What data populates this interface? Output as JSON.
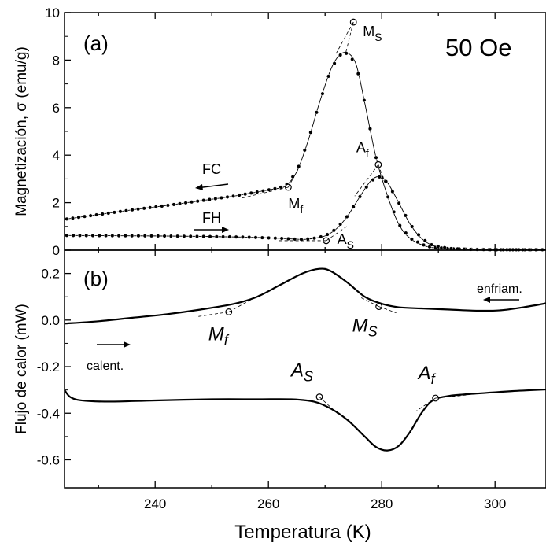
{
  "chart_data": [
    {
      "type": "line",
      "panel_label": "(a)",
      "annotation": "50 Oe",
      "ylabel": "Magnetización, σ (emu/g)",
      "xlim": [
        224,
        309
      ],
      "ylim": [
        0,
        10
      ],
      "yticks": [
        0,
        2,
        4,
        6,
        8,
        10
      ],
      "series": [
        {
          "name": "FC",
          "arrow": "left",
          "x": [
            224,
            230,
            236,
            242,
            248,
            254,
            258,
            261,
            263,
            265,
            267,
            269,
            271,
            272.5,
            274,
            275.5,
            277,
            279,
            281,
            283,
            285,
            288,
            292,
            300,
            309
          ],
          "y": [
            1.3,
            1.5,
            1.7,
            1.88,
            2.08,
            2.28,
            2.45,
            2.58,
            2.7,
            3.3,
            4.6,
            6.2,
            7.6,
            8.2,
            8.3,
            7.8,
            6.2,
            3.9,
            2.3,
            1.1,
            0.5,
            0.15,
            0.06,
            0.02,
            0.02
          ]
        },
        {
          "name": "FH",
          "arrow": "right",
          "x": [
            224,
            232,
            240,
            248,
            256,
            262,
            266,
            268,
            270,
            272,
            274,
            276,
            278,
            279.5,
            281,
            283,
            285,
            287,
            289,
            292,
            296,
            300,
            309
          ],
          "y": [
            0.62,
            0.61,
            0.6,
            0.58,
            0.55,
            0.5,
            0.45,
            0.5,
            0.6,
            0.9,
            1.45,
            2.2,
            2.9,
            3.1,
            2.85,
            2.0,
            1.1,
            0.5,
            0.2,
            0.07,
            0.03,
            0.02,
            0.02
          ]
        }
      ],
      "markers": [
        {
          "label": "M",
          "sub": "S",
          "x": 275,
          "y": 9.6
        },
        {
          "label": "M",
          "sub": "f",
          "x": 263.5,
          "y": 2.65
        },
        {
          "label": "A",
          "sub": "f",
          "x": 279.4,
          "y": 3.6
        },
        {
          "label": "A",
          "sub": "S",
          "x": 270.2,
          "y": 0.4
        }
      ]
    },
    {
      "type": "line",
      "panel_label": "(b)",
      "ylabel": "Flujo de calor (mW)",
      "xlabel": "Temperatura (K)",
      "xlim": [
        224,
        309
      ],
      "ylim": [
        -0.72,
        0.3
      ],
      "yticks": [
        -0.6,
        -0.4,
        -0.2,
        0.0,
        0.2
      ],
      "ytick_labels": [
        "-0.6",
        "-0.4",
        "-0.2",
        "0.0",
        "0.2"
      ],
      "xticks": [
        240,
        260,
        280,
        300
      ],
      "xtick_labels": [
        "240",
        "260",
        "280",
        "300"
      ],
      "series": [
        {
          "name": "enfriam.",
          "arrow": "left",
          "x": [
            224,
            230,
            236,
            242,
            248,
            254,
            258,
            262,
            266,
            269,
            271,
            274,
            277,
            280,
            283,
            287,
            292,
            297,
            301,
            305,
            309
          ],
          "y": [
            -0.015,
            -0.005,
            0.01,
            0.025,
            0.045,
            0.07,
            0.1,
            0.15,
            0.2,
            0.22,
            0.21,
            0.16,
            0.1,
            0.07,
            0.055,
            0.05,
            0.045,
            0.04,
            0.042,
            0.055,
            0.072
          ]
        },
        {
          "name": "calent.",
          "arrow": "right",
          "x": [
            224,
            225,
            227,
            232,
            240,
            250,
            258,
            264,
            268,
            271,
            274,
            277,
            279,
            281,
            283,
            285,
            287,
            289,
            292,
            297,
            303,
            309
          ],
          "y": [
            -0.3,
            -0.33,
            -0.345,
            -0.35,
            -0.345,
            -0.34,
            -0.34,
            -0.34,
            -0.35,
            -0.38,
            -0.43,
            -0.5,
            -0.545,
            -0.56,
            -0.54,
            -0.48,
            -0.4,
            -0.345,
            -0.325,
            -0.315,
            -0.305,
            -0.298
          ]
        }
      ],
      "markers": [
        {
          "label": "M",
          "sub": "f",
          "x": 253,
          "y": 0.035
        },
        {
          "label": "M",
          "sub": "S",
          "x": 279.5,
          "y": 0.058
        },
        {
          "label": "A",
          "sub": "S",
          "x": 269,
          "y": -0.33
        },
        {
          "label": "A",
          "sub": "f",
          "x": 289.5,
          "y": -0.335
        }
      ]
    }
  ]
}
